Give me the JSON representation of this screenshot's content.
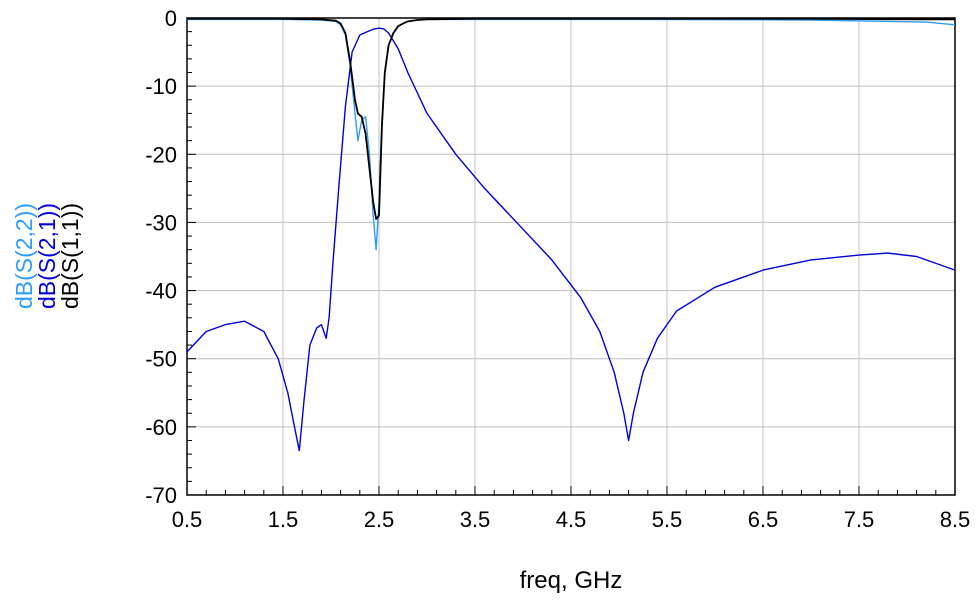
{
  "chart_data": {
    "type": "line",
    "xlabel": "freq, GHz",
    "xlim": [
      0.5,
      8.5
    ],
    "ylim": [
      -70,
      0
    ],
    "xticks": [
      0.5,
      1.5,
      2.5,
      3.5,
      4.5,
      5.5,
      6.5,
      7.5,
      8.5
    ],
    "xtick_labels": [
      "0.5",
      "1.5",
      "2.5",
      "3.5",
      "4.5",
      "5.5",
      "6.5",
      "7.5",
      "8.5"
    ],
    "yticks": [
      0,
      -10,
      -20,
      -30,
      -40,
      -50,
      -60,
      -70
    ],
    "ytick_labels": [
      "0",
      "-10",
      "-20",
      "-30",
      "-40",
      "-50",
      "-60",
      "-70"
    ],
    "grid": true,
    "legend_placement": "left, rotated, stacked as y-axis labels",
    "series": [
      {
        "name": "dB(S(2,2))",
        "color": "#2e9df7",
        "x": [
          0.5,
          1.0,
          1.5,
          1.9,
          2.05,
          2.1,
          2.15,
          2.2,
          2.25,
          2.28,
          2.32,
          2.36,
          2.4,
          2.44,
          2.47,
          2.5,
          2.53,
          2.56,
          2.6,
          2.65,
          2.7,
          2.75,
          2.8,
          2.9,
          3.0,
          3.5,
          5.0,
          7.0,
          8.2,
          8.5
        ],
        "y": [
          -0.2,
          -0.2,
          -0.2,
          -0.3,
          -0.5,
          -1.0,
          -2.5,
          -7,
          -14,
          -18,
          -15,
          -14.5,
          -20,
          -29,
          -34,
          -27,
          -15,
          -8,
          -4,
          -2.2,
          -1.2,
          -0.8,
          -0.5,
          -0.3,
          -0.2,
          -0.2,
          -0.2,
          -0.3,
          -0.6,
          -1.0
        ]
      },
      {
        "name": "dB(S(2,1))",
        "color": "#0000dd",
        "x": [
          0.5,
          0.7,
          0.9,
          1.1,
          1.3,
          1.45,
          1.55,
          1.62,
          1.67,
          1.72,
          1.78,
          1.85,
          1.9,
          1.95,
          1.98,
          2.02,
          2.08,
          2.15,
          2.22,
          2.3,
          2.38,
          2.45,
          2.5,
          2.55,
          2.6,
          2.7,
          2.8,
          3.0,
          3.3,
          3.6,
          4.0,
          4.3,
          4.6,
          4.8,
          4.95,
          5.05,
          5.1,
          5.15,
          5.25,
          5.4,
          5.6,
          6.0,
          6.5,
          7.0,
          7.5,
          7.8,
          8.1,
          8.5
        ],
        "y": [
          -49,
          -46,
          -45,
          -44.5,
          -46,
          -50,
          -55,
          -60,
          -63.5,
          -56,
          -48,
          -45.5,
          -45,
          -47,
          -44,
          -36,
          -25,
          -13,
          -5,
          -2.5,
          -2,
          -1.6,
          -1.5,
          -1.6,
          -2.2,
          -4.5,
          -8,
          -14,
          -20,
          -25,
          -31,
          -35.5,
          -41,
          -46,
          -52,
          -58,
          -62,
          -58,
          -52,
          -47,
          -43,
          -39.5,
          -37,
          -35.5,
          -34.8,
          -34.5,
          -35,
          -37
        ]
      },
      {
        "name": "dB(S(1,1))",
        "color": "#000000",
        "x": [
          0.5,
          1.0,
          1.5,
          1.9,
          2.05,
          2.1,
          2.15,
          2.2,
          2.25,
          2.28,
          2.32,
          2.36,
          2.4,
          2.44,
          2.47,
          2.5,
          2.53,
          2.56,
          2.6,
          2.65,
          2.7,
          2.75,
          2.8,
          2.9,
          3.0,
          3.5,
          5.0,
          7.0,
          8.2,
          8.5
        ],
        "y": [
          -0.1,
          -0.1,
          -0.1,
          -0.2,
          -0.4,
          -0.8,
          -2.2,
          -6.5,
          -12,
          -14,
          -14.5,
          -17,
          -22,
          -27,
          -29.5,
          -29,
          -16,
          -8,
          -4,
          -2.2,
          -1.2,
          -0.8,
          -0.5,
          -0.3,
          -0.2,
          -0.1,
          -0.1,
          -0.1,
          -0.2,
          -0.2
        ]
      }
    ]
  }
}
